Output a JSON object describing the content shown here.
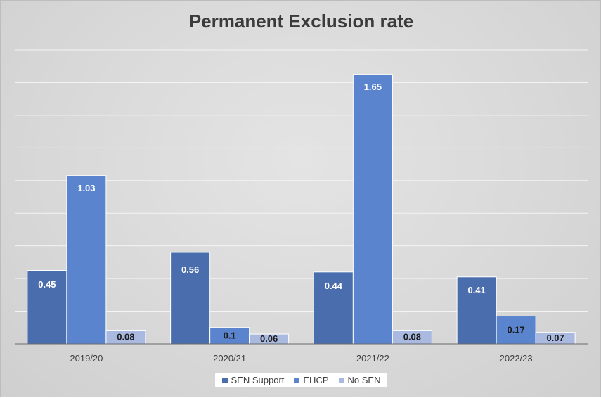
{
  "chart_data": {
    "type": "bar",
    "title": "Permanent Exclusion rate",
    "categories": [
      "2019/20",
      "2020/21",
      "2021/22",
      "2022/23"
    ],
    "series": [
      {
        "name": "SEN Support",
        "values": [
          0.45,
          0.56,
          0.44,
          0.41
        ],
        "color": "#4a6dad"
      },
      {
        "name": "EHCP",
        "values": [
          1.03,
          0.1,
          1.65,
          0.17
        ],
        "color": "#5b84cf"
      },
      {
        "name": "No SEN",
        "values": [
          0.08,
          0.06,
          0.08,
          0.07
        ],
        "color": "#a9b9e0"
      }
    ],
    "ylim": [
      0,
      1.8
    ],
    "gridlines": true,
    "y_tick_labels_shown": false,
    "legend_position": "bottom",
    "data_labels": true
  }
}
